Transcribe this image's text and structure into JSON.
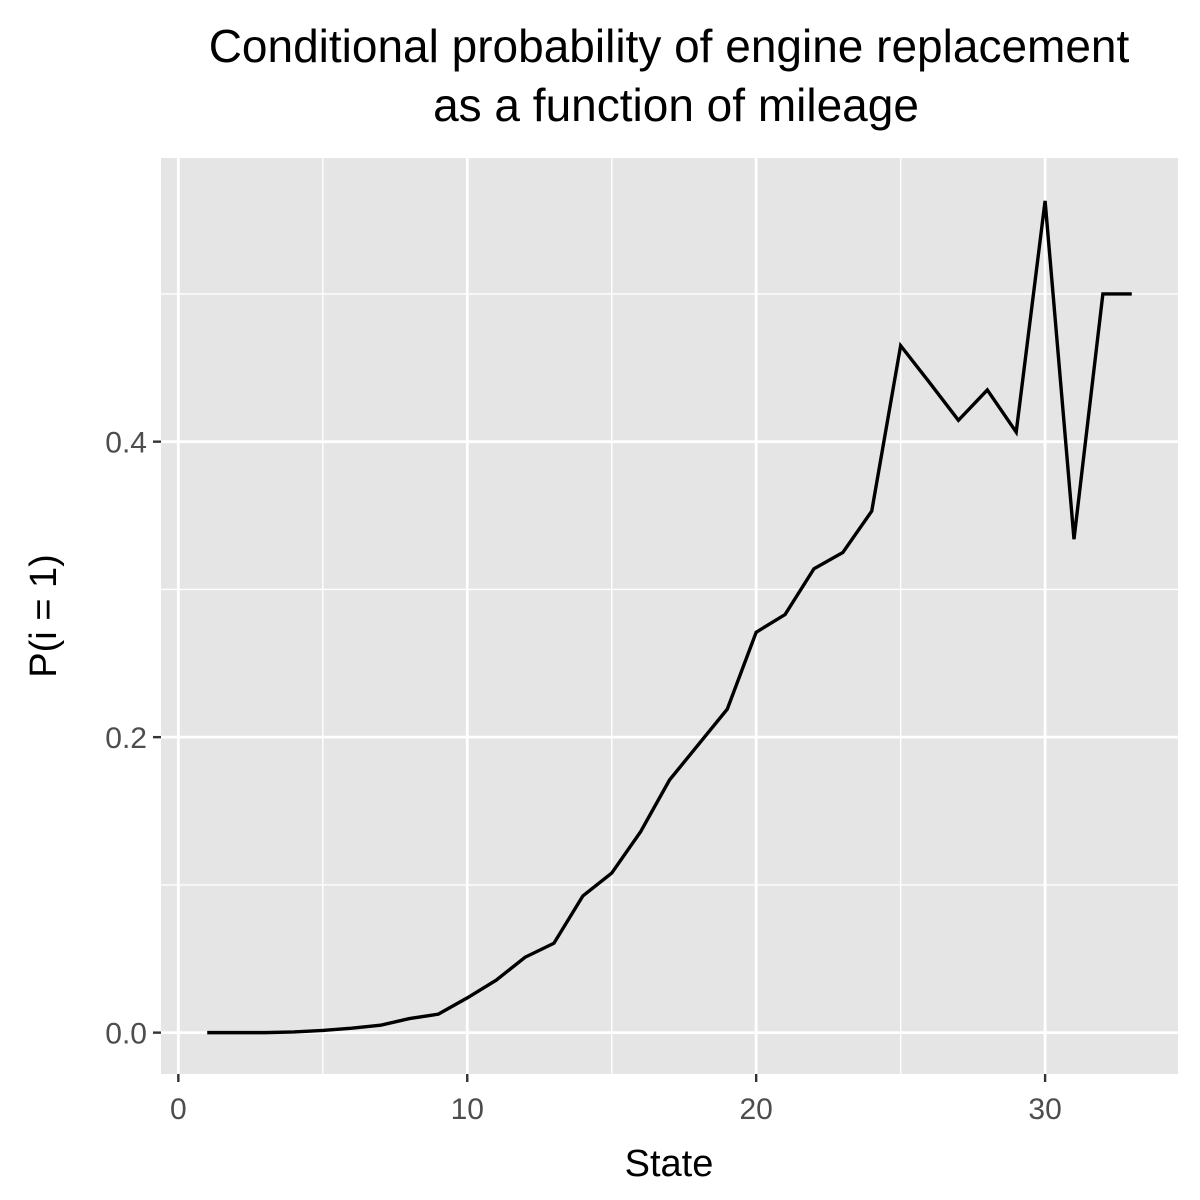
{
  "chart_data": {
    "type": "line",
    "title": "Conditional probability of engine replacement",
    "subtitle": "as a function of mileage",
    "xlabel": "State",
    "ylabel": "P(i = 1)",
    "xlim": [
      -0.6,
      34.6
    ],
    "ylim": [
      -0.028,
      0.592
    ],
    "x_ticks": [
      0,
      10,
      20,
      30
    ],
    "x_tick_labels": [
      "0",
      "10",
      "20",
      "30"
    ],
    "y_ticks": [
      0.0,
      0.2,
      0.4
    ],
    "y_tick_labels": [
      "0.0",
      "0.2",
      "0.4"
    ],
    "x_minor_ticks": [
      5,
      15,
      25
    ],
    "y_minor_ticks": [
      0.1,
      0.3,
      0.5
    ],
    "grid": true,
    "legend": "none",
    "colors": {
      "panel_background": "#e5e5e5",
      "gridline": "#ffffff",
      "line": "#000000",
      "tick": "#333333"
    },
    "series": [
      {
        "x": [
          1,
          2,
          3,
          4,
          5,
          6,
          7,
          8,
          9,
          10,
          11,
          12,
          13,
          14,
          15,
          16,
          17,
          18,
          19,
          20,
          21,
          22,
          23,
          24,
          25,
          26,
          27,
          28,
          29,
          30,
          31,
          32,
          33
        ],
        "y": [
          0.0,
          0.0,
          0.0,
          0.0005,
          0.0015,
          0.003,
          0.005,
          0.0095,
          0.0125,
          0.0235,
          0.0355,
          0.051,
          0.0605,
          0.0925,
          0.108,
          0.136,
          0.171,
          0.195,
          0.219,
          0.271,
          0.283,
          0.314,
          0.325,
          0.353,
          0.465,
          0.44,
          0.4145,
          0.435,
          0.4065,
          0.563,
          0.334,
          0.5,
          0.5
        ]
      }
    ]
  }
}
